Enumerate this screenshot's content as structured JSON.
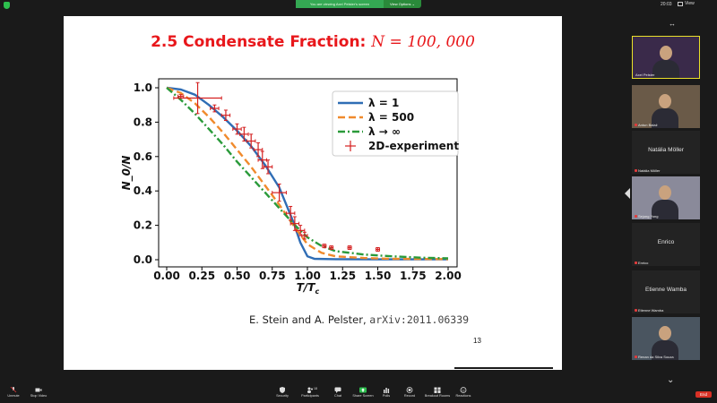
{
  "topbar": {
    "share_message": "You are viewing Axel Pelster's screen",
    "view_options": "View Options ⌄",
    "clock": "20:03",
    "view_label": "View"
  },
  "slide": {
    "title_text": "2.5 Condensate Fraction: ",
    "title_math": "N = 100, 000",
    "citation_text": "E. Stein and A. Pelster, ",
    "citation_mono": "arXiv:2011.06339",
    "page_number": "13"
  },
  "chart_data": {
    "type": "line",
    "xlabel": "T/T_c",
    "ylabel": "N_0/N",
    "xlim": [
      0,
      2.0
    ],
    "ylim": [
      0,
      1.0
    ],
    "xticks": [
      "0.00",
      "0.25",
      "0.50",
      "0.75",
      "1.00",
      "1.25",
      "1.50",
      "1.75",
      "2.00"
    ],
    "yticks": [
      "0.0",
      "0.2",
      "0.4",
      "0.6",
      "0.8",
      "1.0"
    ],
    "legend_placement": "top-right",
    "series": [
      {
        "name": "λ = 1",
        "style": "solid",
        "color": "#2f6db5",
        "x": [
          0.0,
          0.1,
          0.2,
          0.3,
          0.4,
          0.5,
          0.6,
          0.7,
          0.8,
          0.9,
          0.95,
          1.0,
          1.05,
          1.2,
          1.5,
          2.0
        ],
        "y": [
          1.0,
          0.99,
          0.96,
          0.9,
          0.83,
          0.75,
          0.66,
          0.55,
          0.42,
          0.22,
          0.1,
          0.02,
          0.005,
          0.003,
          0.002,
          0.002
        ]
      },
      {
        "name": "λ = 500",
        "style": "dashed",
        "color": "#f08a2c",
        "x": [
          0.0,
          0.1,
          0.2,
          0.3,
          0.4,
          0.5,
          0.6,
          0.7,
          0.8,
          0.9,
          1.0,
          1.1,
          1.2,
          1.4,
          1.6,
          2.0
        ],
        "y": [
          1.0,
          0.97,
          0.91,
          0.83,
          0.74,
          0.64,
          0.54,
          0.43,
          0.32,
          0.2,
          0.09,
          0.04,
          0.02,
          0.01,
          0.005,
          0.003
        ]
      },
      {
        "name": "λ → ∞",
        "style": "dashdot",
        "color": "#2a9a3a",
        "x": [
          0.0,
          0.1,
          0.2,
          0.3,
          0.4,
          0.5,
          0.6,
          0.7,
          0.8,
          0.9,
          1.0,
          1.1,
          1.2,
          1.4,
          1.6,
          1.8,
          2.0
        ],
        "y": [
          1.0,
          0.93,
          0.85,
          0.76,
          0.67,
          0.57,
          0.48,
          0.39,
          0.3,
          0.21,
          0.13,
          0.08,
          0.05,
          0.03,
          0.02,
          0.012,
          0.008
        ]
      }
    ],
    "experiment": {
      "name": "2D-experiment",
      "color": "#d42020",
      "points": [
        {
          "x": 0.1,
          "y": 0.95,
          "xerr": 0.02,
          "yerr": 0.0
        },
        {
          "x": 0.22,
          "y": 0.94,
          "xerr": 0.17,
          "yerr": 0.09
        },
        {
          "x": 0.34,
          "y": 0.88,
          "xerr": 0.03,
          "yerr": 0.02
        },
        {
          "x": 0.42,
          "y": 0.84,
          "xerr": 0.03,
          "yerr": 0.03
        },
        {
          "x": 0.5,
          "y": 0.76,
          "xerr": 0.03,
          "yerr": 0.03
        },
        {
          "x": 0.55,
          "y": 0.73,
          "xerr": 0.03,
          "yerr": 0.04
        },
        {
          "x": 0.6,
          "y": 0.69,
          "xerr": 0.03,
          "yerr": 0.04
        },
        {
          "x": 0.65,
          "y": 0.64,
          "xerr": 0.03,
          "yerr": 0.04
        },
        {
          "x": 0.68,
          "y": 0.58,
          "xerr": 0.03,
          "yerr": 0.05
        },
        {
          "x": 0.72,
          "y": 0.54,
          "xerr": 0.03,
          "yerr": 0.04
        },
        {
          "x": 0.8,
          "y": 0.39,
          "xerr": 0.05,
          "yerr": 0.05
        },
        {
          "x": 0.88,
          "y": 0.27,
          "xerr": 0.03,
          "yerr": 0.04
        },
        {
          "x": 0.91,
          "y": 0.21,
          "xerr": 0.03,
          "yerr": 0.04
        },
        {
          "x": 0.95,
          "y": 0.17,
          "xerr": 0.03,
          "yerr": 0.03
        },
        {
          "x": 0.98,
          "y": 0.14,
          "xerr": 0.02,
          "yerr": 0.02
        },
        {
          "x": 1.12,
          "y": 0.08,
          "xerr": 0.01,
          "yerr": 0.01
        },
        {
          "x": 1.17,
          "y": 0.07,
          "xerr": 0.01,
          "yerr": 0.01
        },
        {
          "x": 1.3,
          "y": 0.07,
          "xerr": 0.01,
          "yerr": 0.01
        },
        {
          "x": 1.5,
          "y": 0.06,
          "xerr": 0.01,
          "yerr": 0.01
        }
      ]
    }
  },
  "participants": [
    {
      "name": "Axel Pelster",
      "video": true,
      "active": true,
      "bg": "#3a2a4a"
    },
    {
      "name": "Antun Balaž",
      "video": true,
      "active": false,
      "bg": "#6a5a48"
    },
    {
      "name": "Natália Möller",
      "video": false,
      "active": false
    },
    {
      "name": "Sejung Yong",
      "video": true,
      "active": false,
      "bg": "#8a8a9a"
    },
    {
      "name": "Enrico",
      "video": false,
      "active": false
    },
    {
      "name": "Etienne Wamba",
      "video": false,
      "active": false
    },
    {
      "name": "Renan da Silva Souza",
      "video": true,
      "active": false,
      "bg": "#4a5560"
    }
  ],
  "toolbar": {
    "unmute": "Unmute",
    "stop_video": "Stop Video",
    "security": "Security",
    "participants": "Participants",
    "participants_count": "18",
    "chat": "Chat",
    "share_screen": "Share Screen",
    "polls": "Polls",
    "record": "Record",
    "breakout_rooms": "Breakout Rooms",
    "reactions": "Reactions",
    "end": "End"
  }
}
